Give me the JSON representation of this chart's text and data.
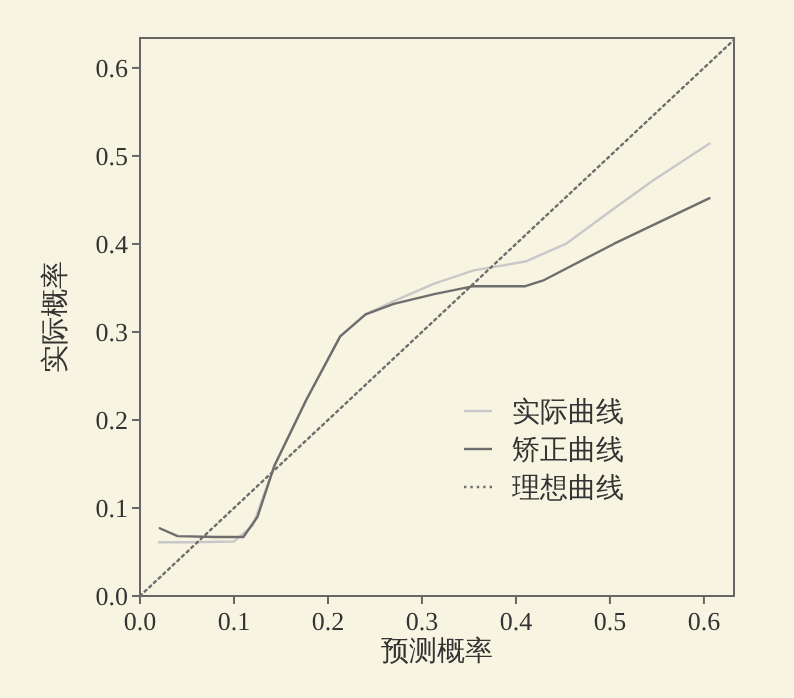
{
  "chart_data": {
    "type": "line",
    "xlabel": "预测概率",
    "ylabel": "实际概率",
    "xlim": [
      0,
      0.632
    ],
    "ylim": [
      0,
      0.634
    ],
    "xticks": [
      {
        "value": 0,
        "label": "0.0"
      },
      0.1,
      0.2,
      0.3,
      0.4,
      0.5,
      0.6
    ],
    "yticks": [
      {
        "value": 0,
        "label": "0.0"
      },
      0.1,
      0.2,
      0.3,
      0.4,
      0.5,
      0.6
    ],
    "legend": "bottom right",
    "series": [
      {
        "name": "实际曲线",
        "color": "#c8c8c8",
        "line_style": "solid",
        "x": [
          0.02,
          0.05,
          0.1,
          0.12,
          0.143,
          0.177,
          0.213,
          0.24,
          0.27,
          0.313,
          0.355,
          0.41,
          0.453,
          0.504,
          0.547,
          0.606
        ],
        "values": [
          0.061,
          0.061,
          0.062,
          0.08,
          0.148,
          0.223,
          0.295,
          0.32,
          0.335,
          0.355,
          0.37,
          0.38,
          0.4,
          0.44,
          0.473,
          0.514
        ]
      },
      {
        "name": "矫正曲线",
        "color": "#6e6e6e",
        "line_style": "solid",
        "x": [
          0.021,
          0.04,
          0.08,
          0.11,
          0.125,
          0.143,
          0.177,
          0.213,
          0.24,
          0.27,
          0.313,
          0.355,
          0.41,
          0.43,
          0.504,
          0.606
        ],
        "values": [
          0.077,
          0.068,
          0.067,
          0.067,
          0.09,
          0.148,
          0.223,
          0.295,
          0.32,
          0.332,
          0.343,
          0.352,
          0.352,
          0.359,
          0.4,
          0.452
        ]
      },
      {
        "name": "理想曲线",
        "color": "#6e6e6e",
        "line_style": "dotted",
        "x": [
          0,
          0.632
        ],
        "values": [
          0,
          0.632
        ]
      }
    ]
  }
}
